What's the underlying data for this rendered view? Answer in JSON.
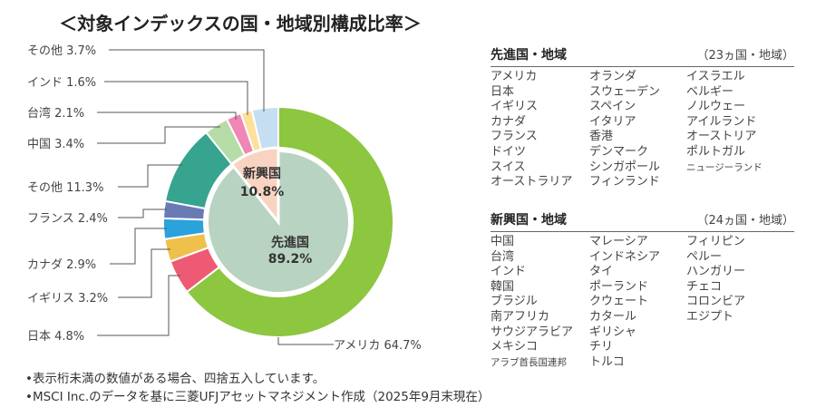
{
  "title": "＜対象インデックスの国・地域別構成比率＞",
  "chart_data": {
    "type": "pie",
    "title": "＜対象インデックスの国・地域別構成比率＞",
    "inner": [
      {
        "name": "先進国",
        "value": 89.2,
        "label": "89.2%",
        "color": "#b8d3c1"
      },
      {
        "name": "新興国",
        "value": 10.8,
        "label": "10.8%",
        "color": "#f9d3c2"
      }
    ],
    "outer": [
      {
        "name": "アメリカ",
        "value": 64.7,
        "label": "アメリカ 64.7%",
        "color": "#8dc63f",
        "group": "先進国"
      },
      {
        "name": "日本",
        "value": 4.8,
        "label": "日本 4.8%",
        "color": "#ee5a73",
        "group": "先進国"
      },
      {
        "name": "イギリス",
        "value": 3.2,
        "label": "イギリス 3.2%",
        "color": "#f0c04c",
        "group": "先進国"
      },
      {
        "name": "カナダ",
        "value": 2.9,
        "label": "カナダ 2.9%",
        "color": "#2aa2dc",
        "group": "先進国"
      },
      {
        "name": "フランス",
        "value": 2.4,
        "label": "フランス 2.4%",
        "color": "#6a7ab5",
        "group": "先進国"
      },
      {
        "name": "その他",
        "value": 11.3,
        "label": "その他 11.3%",
        "color": "#36a48f",
        "group": "先進国"
      },
      {
        "name": "中国",
        "value": 3.4,
        "label": "中国 3.4%",
        "color": "#b6dca8",
        "group": "新興国"
      },
      {
        "name": "台湾",
        "value": 2.1,
        "label": "台湾 2.1%",
        "color": "#ef86b6",
        "group": "新興国"
      },
      {
        "name": "インド",
        "value": 1.6,
        "label": "インド 1.6%",
        "color": "#fde19a",
        "group": "新興国"
      },
      {
        "name": "その他",
        "value": 3.7,
        "label": "その他 3.7%",
        "color": "#c5def2",
        "group": "新興国"
      }
    ]
  },
  "developed": {
    "heading": "先進国・地域",
    "count": "（23ヵ国・地域）",
    "columns": [
      [
        "アメリカ",
        "日本",
        "イギリス",
        "カナダ",
        "フランス",
        "ドイツ",
        "スイス",
        "オーストラリア"
      ],
      [
        "オランダ",
        "スウェーデン",
        "スペイン",
        "イタリア",
        "香港",
        "デンマーク",
        "シンガポール",
        "フィンランド"
      ],
      [
        "イスラエル",
        "ベルギー",
        "ノルウェー",
        "アイルランド",
        "オーストリア",
        "ポルトガル",
        "ニュージーランド"
      ]
    ]
  },
  "emerging": {
    "heading": "新興国・地域",
    "count": "（24ヵ国・地域）",
    "columns": [
      [
        "中国",
        "台湾",
        "インド",
        "韓国",
        "ブラジル",
        "南アフリカ",
        "サウジアラビア",
        "メキシコ",
        "アラブ首長国連邦"
      ],
      [
        "マレーシア",
        "インドネシア",
        "タイ",
        "ポーランド",
        "クウェート",
        "カタール",
        "ギリシャ",
        "チリ",
        "トルコ"
      ],
      [
        "フィリピン",
        "ペルー",
        "ハンガリー",
        "チェコ",
        "コロンビア",
        "エジプト"
      ]
    ]
  },
  "notes": [
    "•表示桁未満の数値がある場合、四捨五入しています。",
    "•MSCI Inc.のデータを基に三菱UFJアセットマネジメント作成（2025年9月末現在）"
  ]
}
